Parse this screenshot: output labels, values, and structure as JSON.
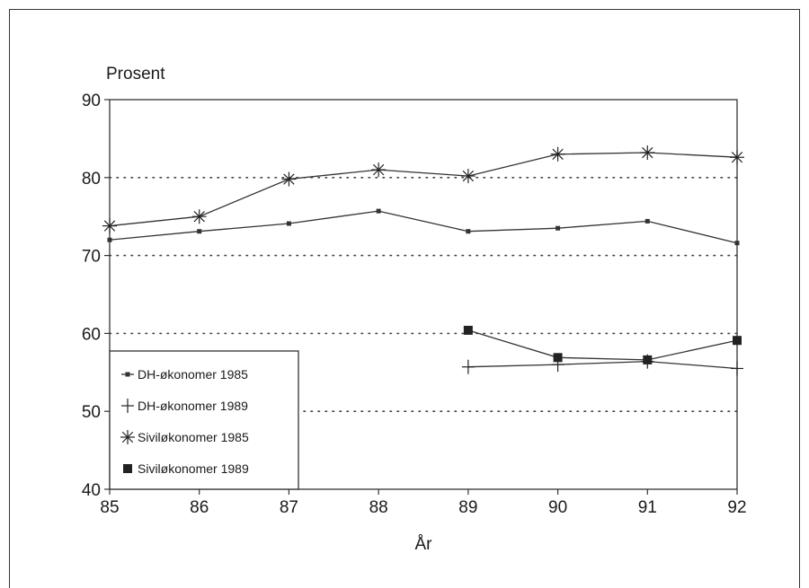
{
  "chart_data": {
    "type": "line",
    "ylabel": "Prosent",
    "xlabel": "År",
    "x_ticks": [
      "85",
      "86",
      "87",
      "88",
      "89",
      "90",
      "91",
      "92"
    ],
    "y_ticks": [
      "40",
      "50",
      "60",
      "70",
      "80",
      "90"
    ],
    "xlim": [
      85,
      92
    ],
    "ylim": [
      40,
      90
    ],
    "grid": "horizontal dotted at 50, 60, 70, 80",
    "legend_position": "bottom-left",
    "series": [
      {
        "name": "DH-økonomer 1985",
        "marker": "small-square",
        "x": [
          85,
          86,
          87,
          88,
          89,
          90,
          91,
          92
        ],
        "y": [
          72.0,
          73.1,
          74.1,
          75.7,
          73.1,
          73.5,
          74.4,
          71.6
        ]
      },
      {
        "name": "DH-økonomer 1989",
        "marker": "plus",
        "x": [
          89,
          90,
          91,
          92
        ],
        "y": [
          55.7,
          56.0,
          56.4,
          55.5
        ]
      },
      {
        "name": "Siviløkonomer 1985",
        "marker": "asterisk",
        "x": [
          85,
          86,
          87,
          88,
          89,
          90,
          91,
          92
        ],
        "y": [
          73.8,
          75.0,
          79.8,
          81.0,
          80.2,
          83.0,
          83.2,
          82.6
        ]
      },
      {
        "name": "Siviløkonomer 1989",
        "marker": "filled-square",
        "x": [
          89,
          90,
          91,
          92
        ],
        "y": [
          60.4,
          56.9,
          56.6,
          59.1
        ]
      }
    ]
  }
}
